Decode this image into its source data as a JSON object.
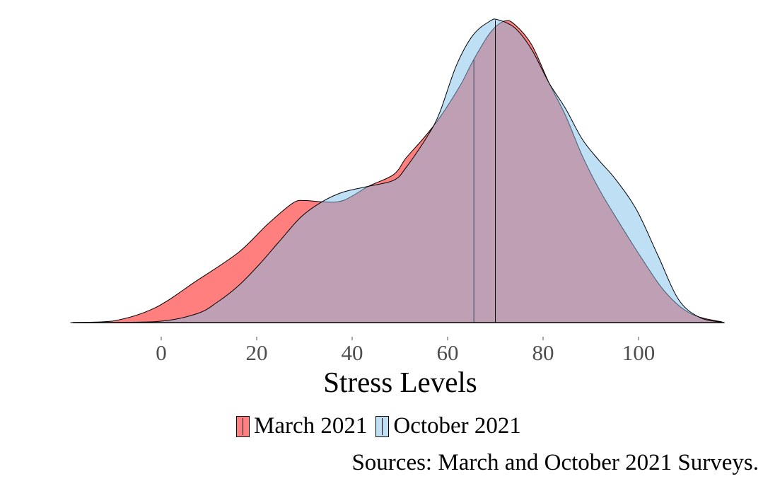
{
  "chart_data": {
    "type": "area",
    "subtype": "density",
    "xlabel": "Stress Levels",
    "ylabel": "",
    "xlim": [
      -18.5,
      118
    ],
    "ylim": [
      0,
      1.0
    ],
    "xticks": [
      0,
      20,
      40,
      60,
      80,
      100
    ],
    "grid": false,
    "legend_position": "bottom",
    "caption": "Sources: March and October 2021 Surveys.",
    "series": [
      {
        "name": "March 2021",
        "color": "rgba(255,0,0,0.5)",
        "reference_line": 65.5,
        "points": [
          [
            -19,
            0
          ],
          [
            -10.2,
            0.005
          ],
          [
            -1.4,
            0.048
          ],
          [
            7.4,
            0.138
          ],
          [
            16.2,
            0.232
          ],
          [
            22.3,
            0.325
          ],
          [
            27.6,
            0.395
          ],
          [
            30.2,
            0.403
          ],
          [
            33.7,
            0.399
          ],
          [
            38.1,
            0.403
          ],
          [
            43.4,
            0.45
          ],
          [
            48.7,
            0.489
          ],
          [
            51.3,
            0.544
          ],
          [
            54.8,
            0.606
          ],
          [
            58.3,
            0.676
          ],
          [
            62.7,
            0.785
          ],
          [
            65.3,
            0.864
          ],
          [
            68.9,
            0.957
          ],
          [
            71.9,
            0.996
          ],
          [
            74.1,
            0.984
          ],
          [
            77.6,
            0.918
          ],
          [
            81.2,
            0.793
          ],
          [
            84.7,
            0.684
          ],
          [
            88.2,
            0.551
          ],
          [
            91.7,
            0.442
          ],
          [
            95.2,
            0.349
          ],
          [
            100.5,
            0.216
          ],
          [
            105.7,
            0.099
          ],
          [
            111,
            0.029
          ],
          [
            117.5,
            0.002
          ]
        ]
      },
      {
        "name": "October 2021",
        "color": "rgba(127,192,234,0.5)",
        "reference_line": 70,
        "points": [
          [
            -19,
            0
          ],
          [
            -1.4,
            0.003
          ],
          [
            7.4,
            0.029
          ],
          [
            11.8,
            0.068
          ],
          [
            16.2,
            0.122
          ],
          [
            20.6,
            0.193
          ],
          [
            24.9,
            0.271
          ],
          [
            29.3,
            0.349
          ],
          [
            33.7,
            0.399
          ],
          [
            38.1,
            0.431
          ],
          [
            43.4,
            0.45
          ],
          [
            48.7,
            0.47
          ],
          [
            51.3,
            0.512
          ],
          [
            55.7,
            0.614
          ],
          [
            58.3,
            0.692
          ],
          [
            61.8,
            0.848
          ],
          [
            65.3,
            0.949
          ],
          [
            68.9,
            0.996
          ],
          [
            70.6,
            1.0
          ],
          [
            74.1,
            0.973
          ],
          [
            77.6,
            0.902
          ],
          [
            81.2,
            0.793
          ],
          [
            84.7,
            0.707
          ],
          [
            88.2,
            0.606
          ],
          [
            91.7,
            0.536
          ],
          [
            95.2,
            0.473
          ],
          [
            99.6,
            0.372
          ],
          [
            104,
            0.224
          ],
          [
            108.4,
            0.076
          ],
          [
            112.8,
            0.017
          ],
          [
            117.5,
            0.001
          ]
        ]
      }
    ]
  }
}
